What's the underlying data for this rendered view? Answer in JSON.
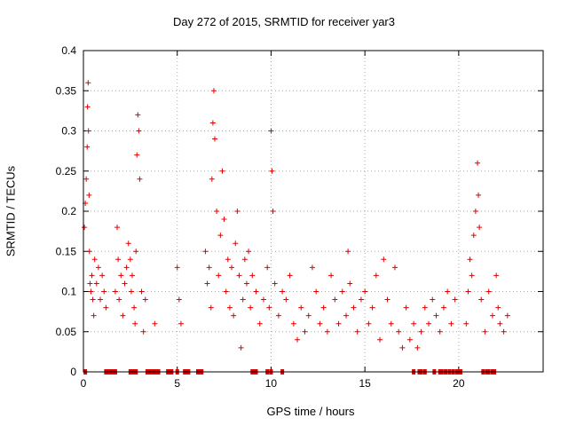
{
  "chart_data": {
    "type": "scatter",
    "title": "Day 272 of 2015, SRMTID for receiver yar3",
    "xlabel": "GPS time / hours",
    "ylabel": "SRMTID / TECUs",
    "xlim": [
      0,
      24.5
    ],
    "ylim": [
      0,
      0.4
    ],
    "grid": true,
    "marker": "plus",
    "color": "#e00000",
    "x_ticks": [
      0,
      5,
      10,
      15,
      20
    ],
    "x_tick_labels": [
      "0",
      "5",
      "10",
      "15",
      "20"
    ],
    "y_ticks": [
      0,
      0.05,
      0.1,
      0.15,
      0.2,
      0.25,
      0.3,
      0.35,
      0.4
    ],
    "y_tick_labels": [
      "0",
      "0.05",
      "0.1",
      "0.15",
      "0.2",
      "0.25",
      "0.3",
      "0.35",
      "0.4"
    ],
    "series": [
      {
        "name": "SRMTID",
        "x": [
          0.05,
          0.1,
          0.15,
          0.2,
          0.22,
          0.25,
          0.27,
          0.3,
          0.32,
          0.35,
          0.4,
          0.45,
          0.5,
          0.55,
          0.6,
          0.7,
          0.8,
          0.9,
          1.0,
          1.1,
          1.2,
          1.7,
          1.8,
          1.85,
          1.9,
          2.0,
          2.1,
          2.2,
          2.3,
          2.4,
          2.5,
          2.55,
          2.6,
          2.7,
          2.75,
          2.8,
          2.85,
          2.9,
          2.95,
          3.0,
          3.1,
          3.2,
          3.3,
          3.8,
          5.0,
          5.1,
          5.2,
          6.5,
          6.6,
          6.7,
          6.8,
          6.85,
          6.9,
          6.95,
          7.0,
          7.1,
          7.2,
          7.3,
          7.4,
          7.5,
          7.6,
          7.7,
          7.8,
          7.9,
          8.0,
          8.1,
          8.2,
          8.3,
          8.4,
          8.5,
          8.6,
          8.7,
          8.8,
          8.9,
          9.0,
          9.2,
          9.4,
          9.6,
          9.8,
          9.9,
          10.0,
          10.05,
          10.1,
          10.2,
          10.4,
          10.6,
          10.8,
          11.0,
          11.2,
          11.4,
          11.6,
          11.8,
          12.0,
          12.2,
          12.4,
          12.6,
          12.8,
          13.0,
          13.2,
          13.4,
          13.6,
          13.8,
          14.0,
          14.1,
          14.2,
          14.4,
          14.6,
          14.8,
          15.0,
          15.2,
          15.4,
          15.6,
          15.8,
          16.0,
          16.2,
          16.4,
          16.6,
          16.8,
          17.0,
          17.2,
          17.4,
          17.6,
          17.8,
          18.0,
          18.2,
          18.4,
          18.6,
          18.8,
          19.0,
          19.2,
          19.4,
          19.6,
          19.8,
          20.4,
          20.5,
          20.6,
          20.7,
          20.8,
          20.9,
          21.0,
          21.05,
          21.1,
          21.2,
          21.4,
          21.6,
          21.8,
          22.0,
          22.1,
          22.2,
          22.4,
          22.6
        ],
        "y": [
          0.18,
          0.21,
          0.24,
          0.28,
          0.33,
          0.36,
          0.3,
          0.22,
          0.15,
          0.11,
          0.1,
          0.12,
          0.09,
          0.07,
          0.14,
          0.11,
          0.13,
          0.09,
          0.12,
          0.1,
          0.08,
          0.1,
          0.18,
          0.14,
          0.09,
          0.12,
          0.07,
          0.11,
          0.13,
          0.16,
          0.14,
          0.1,
          0.12,
          0.08,
          0.06,
          0.15,
          0.27,
          0.32,
          0.3,
          0.24,
          0.1,
          0.05,
          0.09,
          0.06,
          0.13,
          0.09,
          0.06,
          0.15,
          0.11,
          0.13,
          0.08,
          0.24,
          0.31,
          0.35,
          0.29,
          0.2,
          0.12,
          0.17,
          0.25,
          0.19,
          0.1,
          0.14,
          0.08,
          0.13,
          0.07,
          0.16,
          0.2,
          0.12,
          0.03,
          0.09,
          0.14,
          0.11,
          0.15,
          0.08,
          0.12,
          0.1,
          0.06,
          0.09,
          0.13,
          0.08,
          0.3,
          0.25,
          0.2,
          0.11,
          0.07,
          0.1,
          0.09,
          0.12,
          0.06,
          0.04,
          0.08,
          0.05,
          0.07,
          0.13,
          0.1,
          0.06,
          0.08,
          0.05,
          0.12,
          0.09,
          0.06,
          0.1,
          0.07,
          0.15,
          0.11,
          0.08,
          0.05,
          0.09,
          0.1,
          0.06,
          0.08,
          0.12,
          0.04,
          0.14,
          0.09,
          0.06,
          0.13,
          0.05,
          0.03,
          0.08,
          0.04,
          0.06,
          0.03,
          0.05,
          0.08,
          0.06,
          0.09,
          0.07,
          0.05,
          0.08,
          0.1,
          0.06,
          0.09,
          0.06,
          0.1,
          0.14,
          0.12,
          0.17,
          0.2,
          0.26,
          0.22,
          0.18,
          0.09,
          0.05,
          0.1,
          0.07,
          0.12,
          0.08,
          0.06,
          0.05,
          0.07
        ]
      }
    ],
    "zero_markers_x": [
      0.1,
      1.2,
      1.3,
      1.4,
      1.5,
      1.6,
      1.7,
      2.5,
      2.6,
      2.7,
      2.8,
      3.4,
      3.5,
      3.6,
      3.7,
      3.8,
      3.9,
      4.0,
      4.5,
      4.6,
      4.7,
      5.0,
      5.4,
      5.5,
      5.6,
      6.1,
      6.2,
      6.3,
      9.0,
      9.1,
      9.2,
      9.8,
      10.0,
      10.6,
      17.6,
      17.9,
      18.0,
      18.2,
      18.7,
      19.0,
      19.1,
      19.3,
      19.5,
      19.7,
      19.9,
      20.0,
      20.1,
      21.3,
      21.5,
      21.6,
      21.8,
      21.9
    ]
  }
}
